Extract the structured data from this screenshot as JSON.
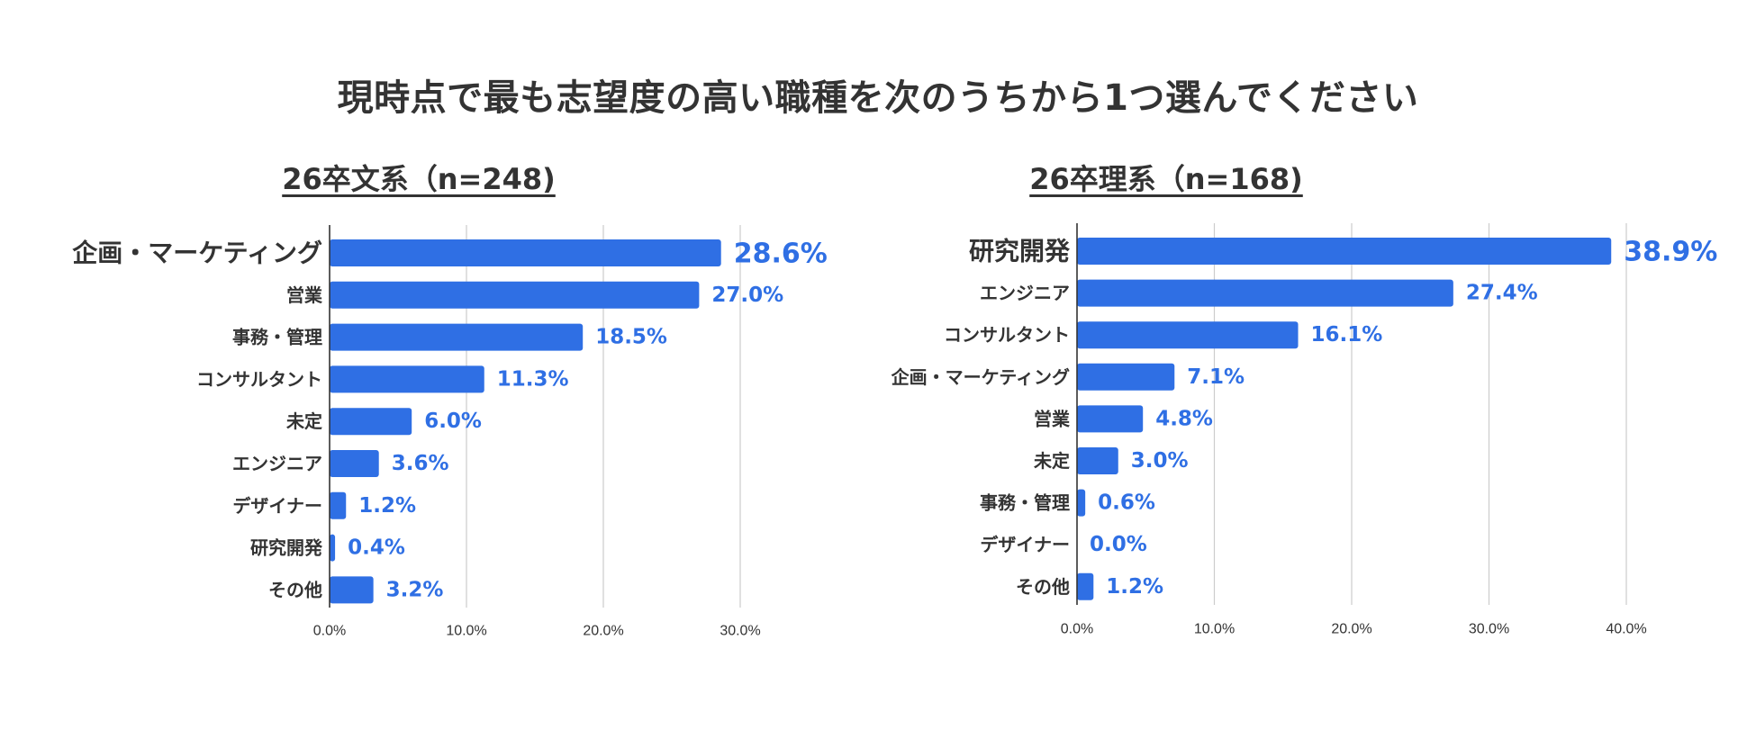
{
  "title": "現時点で最も志望度の高い職種を次のうちから1つ選んでください",
  "colors": {
    "bar": "#2f6fe4",
    "value_text": "#2f6fe4",
    "grid": "#cccccc",
    "axis": "#333333",
    "text": "#333333"
  },
  "chart_data": [
    {
      "type": "bar",
      "orientation": "horizontal",
      "title": "26卒文系（n=248)",
      "categories": [
        "企画・マーケティング",
        "営業",
        "事務・管理",
        "コンサルタント",
        "未定",
        "エンジニア",
        "デザイナー",
        "研究開発",
        "その他"
      ],
      "values": [
        28.6,
        27.0,
        18.5,
        11.3,
        6.0,
        3.6,
        1.2,
        0.4,
        3.2
      ],
      "value_labels": [
        "28.6%",
        "27.0%",
        "18.5%",
        "11.3%",
        "6.0%",
        "3.6%",
        "1.2%",
        "0.4%",
        "3.2%"
      ],
      "xlim": [
        0,
        35
      ],
      "xticks": [
        0,
        10,
        20,
        30
      ],
      "xtick_labels": [
        "0.0%",
        "10.0%",
        "20.0%",
        "30.0%"
      ],
      "grid": true,
      "xlabel": "",
      "ylabel": ""
    },
    {
      "type": "bar",
      "orientation": "horizontal",
      "title": "26卒理系（n=168)",
      "categories": [
        "研究開発",
        "エンジニア",
        "コンサルタント",
        "企画・マーケティング",
        "営業",
        "未定",
        "事務・管理",
        "デザイナー",
        "その他"
      ],
      "values": [
        38.9,
        27.4,
        16.1,
        7.1,
        4.8,
        3.0,
        0.6,
        0.0,
        1.2
      ],
      "value_labels": [
        "38.9%",
        "27.4%",
        "16.1%",
        "7.1%",
        "4.8%",
        "3.0%",
        "0.6%",
        "0.0%",
        "1.2%"
      ],
      "xlim": [
        0,
        45
      ],
      "xticks": [
        0,
        10,
        20,
        30,
        40
      ],
      "xtick_labels": [
        "0.0%",
        "10.0%",
        "20.0%",
        "30.0%",
        "40.0%"
      ],
      "grid": true,
      "xlabel": "",
      "ylabel": ""
    }
  ]
}
